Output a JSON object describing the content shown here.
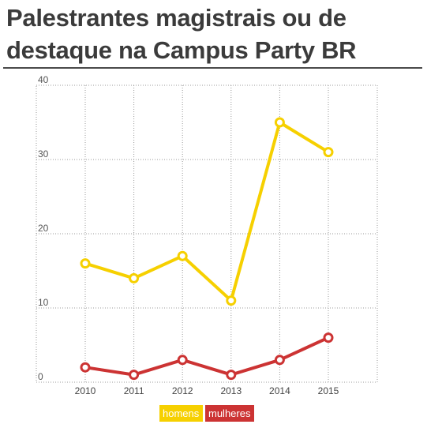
{
  "title": "Palestrantes magistrais ou de destaque na Campus Party BR",
  "colors": {
    "homens": "#f6d000",
    "mulheres": "#cc3333"
  },
  "legend": {
    "men": "homens",
    "women": "mulheres"
  },
  "chart_data": {
    "type": "line",
    "x": [
      "2010",
      "2011",
      "2012",
      "2013",
      "2014",
      "2015"
    ],
    "series": [
      {
        "name": "homens",
        "values": [
          16,
          14,
          17,
          11,
          35,
          31
        ]
      },
      {
        "name": "mulheres",
        "values": [
          2,
          1,
          3,
          1,
          3,
          6
        ]
      }
    ],
    "ylim": [
      0,
      40
    ],
    "yticks": [
      0,
      10,
      20,
      30,
      40
    ],
    "grid": true,
    "legend_position": "bottom-center"
  }
}
